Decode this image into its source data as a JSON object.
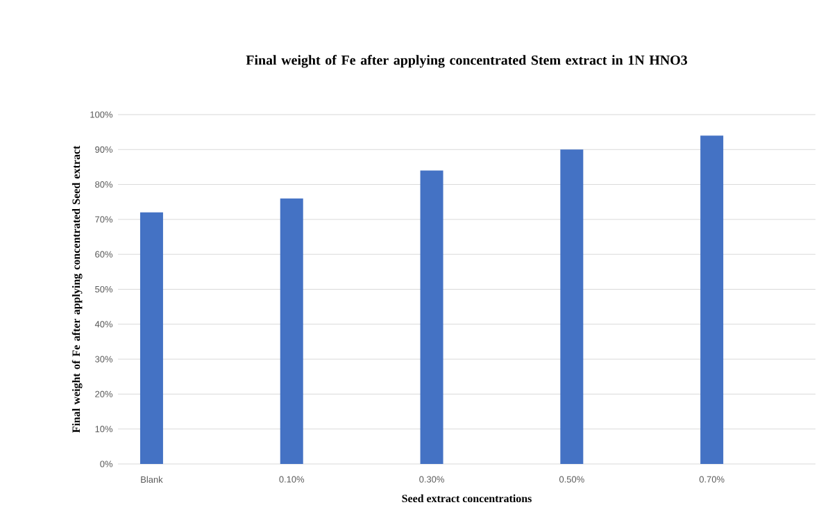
{
  "chart_data": {
    "type": "bar",
    "title": "Final weight of Fe after applying concentrated Stem extract in 1N HNO3",
    "xlabel": "Seed extract concentrations",
    "ylabel": "Final weight of Fe after applying concentrated Seed extract",
    "categories": [
      "Blank",
      "0.10%",
      "0.30%",
      "0.50%",
      "0.70%"
    ],
    "values": [
      72,
      76,
      84,
      90,
      94
    ],
    "color": "#4472c4",
    "ylim": [
      0,
      100
    ],
    "yticks": [
      {
        "value": 0,
        "label": "0%"
      },
      {
        "value": 10,
        "label": "10%"
      },
      {
        "value": 20,
        "label": "20%"
      },
      {
        "value": 30,
        "label": "30%"
      },
      {
        "value": 40,
        "label": "40%"
      },
      {
        "value": 50,
        "label": "50%"
      },
      {
        "value": 60,
        "label": "60%"
      },
      {
        "value": 70,
        "label": "70%"
      },
      {
        "value": 80,
        "label": "80%"
      },
      {
        "value": 90,
        "label": "90%"
      },
      {
        "value": 100,
        "label": "100%"
      }
    ],
    "grid": "y"
  }
}
